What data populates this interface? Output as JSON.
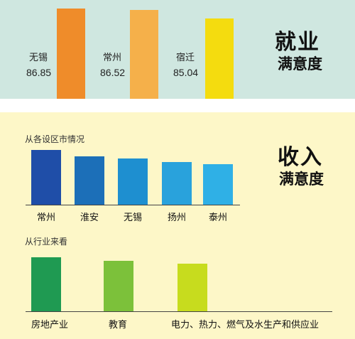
{
  "employment": {
    "title_line1": "就业",
    "title_line2": "满意度"
  },
  "income": {
    "title_line1": "收入",
    "title_line2": "满意度",
    "by_city_label": "从各设区市情况",
    "by_industry_label": "从行业来看"
  },
  "colors": {
    "top_bg": "#cfe7e0",
    "bottom_bg": "#fdf7c8",
    "employment_bars": [
      "#ef8c2a",
      "#f5b04a",
      "#f4dc0f"
    ],
    "city_bars": [
      "#1f4ea8",
      "#1c6fb8",
      "#1e8fd0",
      "#29a2dc",
      "#2fb0e6"
    ],
    "industry_bars": [
      "#1f9a52",
      "#7cc13a",
      "#c7dc1e"
    ]
  },
  "chart_data": [
    {
      "type": "bar",
      "title": "就业满意度",
      "categories": [
        "无锡",
        "常州",
        "宿迁"
      ],
      "values": [
        86.85,
        86.52,
        85.04
      ],
      "value_labels": [
        "86.85",
        "86.52",
        "85.04"
      ],
      "xlabel": "",
      "ylabel": ""
    },
    {
      "type": "bar",
      "title": "收入满意度",
      "subtitle": "从各设区市情况",
      "categories": [
        "常州",
        "淮安",
        "无锡",
        "扬州",
        "泰州"
      ],
      "values": [
        5,
        4.4,
        4.2,
        3.9,
        3.7
      ],
      "xlabel": "",
      "ylabel": ""
    },
    {
      "type": "bar",
      "subtitle": "从行业来看",
      "categories": [
        "房地产业",
        "教育",
        "电力、热力、燃气及水生产和供应业"
      ],
      "values": [
        5,
        4.7,
        4.4
      ],
      "xlabel": "",
      "ylabel": ""
    }
  ]
}
